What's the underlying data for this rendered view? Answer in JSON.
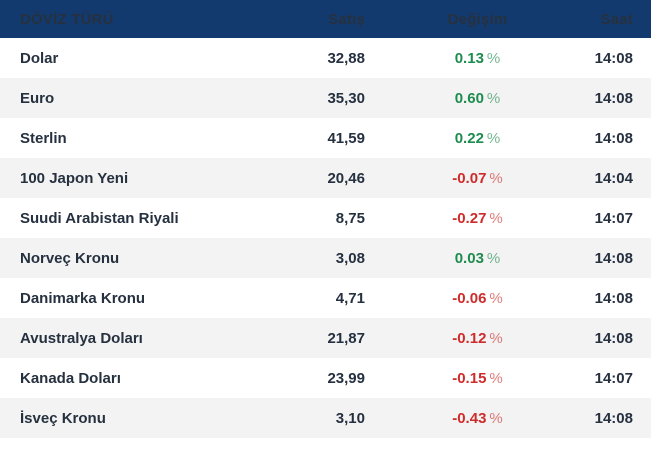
{
  "labels": {
    "percent_sign": "%"
  },
  "colors": {
    "header_bg": "#133A6E",
    "header_text": "#FFFFFF",
    "row_text": "#263140",
    "row_alt_bg": "#F3F3F3",
    "positive": "#1E8C4F",
    "negative": "#CE2C2C"
  },
  "table": {
    "header": {
      "currency_type": "DÖVİZ TÜRÜ",
      "sale": "Satış",
      "change": "Değişim",
      "time": "Saat"
    },
    "rows": [
      {
        "name": "Dolar",
        "sale": "32,88",
        "change": "0.13",
        "direction": "up",
        "time": "14:08"
      },
      {
        "name": "Euro",
        "sale": "35,30",
        "change": "0.60",
        "direction": "up",
        "time": "14:08"
      },
      {
        "name": "Sterlin",
        "sale": "41,59",
        "change": "0.22",
        "direction": "up",
        "time": "14:08"
      },
      {
        "name": "100 Japon Yeni",
        "sale": "20,46",
        "change": "-0.07",
        "direction": "down",
        "time": "14:04"
      },
      {
        "name": "Suudi Arabistan Riyali",
        "sale": "8,75",
        "change": "-0.27",
        "direction": "down",
        "time": "14:07"
      },
      {
        "name": "Norveç Kronu",
        "sale": "3,08",
        "change": "0.03",
        "direction": "up",
        "time": "14:08"
      },
      {
        "name": "Danimarka Kronu",
        "sale": "4,71",
        "change": "-0.06",
        "direction": "down",
        "time": "14:08"
      },
      {
        "name": "Avustralya Doları",
        "sale": "21,87",
        "change": "-0.12",
        "direction": "down",
        "time": "14:08"
      },
      {
        "name": "Kanada Doları",
        "sale": "23,99",
        "change": "-0.15",
        "direction": "down",
        "time": "14:07"
      },
      {
        "name": "İsveç Kronu",
        "sale": "3,10",
        "change": "-0.43",
        "direction": "down",
        "time": "14:08"
      }
    ]
  }
}
